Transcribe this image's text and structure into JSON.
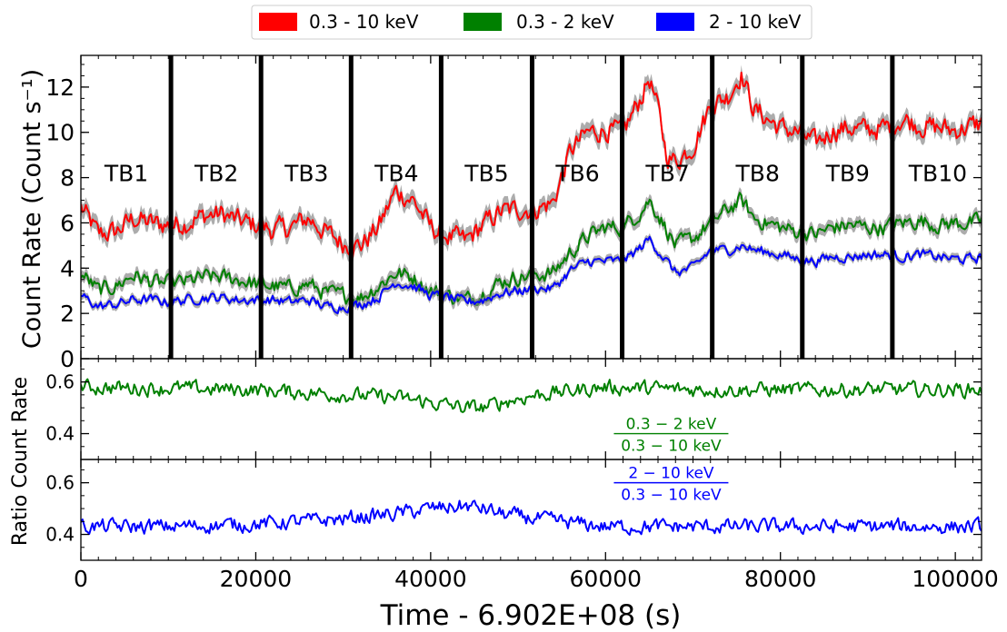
{
  "chart_data": {
    "type": "line",
    "legend": {
      "placement": "top-center",
      "entries": [
        {
          "label": "0.3 - 10 keV",
          "color": "#ff0000"
        },
        {
          "label": "0.3 - 2 keV",
          "color": "#008000"
        },
        {
          "label": "2 - 10 keV",
          "color": "#0000ff"
        }
      ]
    },
    "x_axis": {
      "label": "Time - 6.902E+08 (s)",
      "range": [
        0,
        103000
      ],
      "ticks": [
        0,
        20000,
        40000,
        60000,
        80000,
        100000
      ],
      "tick_labels": [
        "0",
        "20000",
        "40000",
        "60000",
        "80000",
        "100000"
      ]
    },
    "panels": [
      {
        "name": "light-curves",
        "ylabel": "Count Rate (Count s⁻¹)",
        "ylim": [
          0,
          13.4
        ],
        "yticks": [
          0,
          2,
          4,
          6,
          8,
          10,
          12
        ],
        "ytick_labels": [
          "0",
          "2",
          "4",
          "6",
          "8",
          "10",
          "12"
        ],
        "series": [
          {
            "name": "0.3 - 10 keV",
            "color": "#ff0000",
            "x": [
              0,
              2000,
              4000,
              6000,
              8000,
              10000,
              12000,
              14000,
              16000,
              18000,
              20000,
              22000,
              24000,
              26000,
              28000,
              30000,
              32000,
              34000,
              36000,
              38000,
              40000,
              42000,
              44000,
              46000,
              48000,
              50000,
              52000,
              54000,
              56000,
              58000,
              60000,
              62000,
              64000,
              65000,
              66000,
              67000,
              68000,
              70000,
              72000,
              74000,
              75500,
              77000,
              80000,
              82000,
              84000,
              86000,
              88000,
              90000,
              92000,
              94000,
              96000,
              98000,
              100000,
              102000,
              103000
            ],
            "y": [
              6.7,
              5.5,
              5.6,
              6.2,
              6.0,
              5.9,
              6.0,
              6.3,
              6.4,
              6.1,
              5.9,
              5.7,
              5.8,
              6.2,
              5.6,
              5.1,
              5.0,
              5.8,
              7.4,
              7.0,
              5.8,
              5.4,
              5.2,
              5.9,
              6.5,
              6.6,
              6.6,
              6.9,
              9.2,
              10.0,
              10.1,
              10.0,
              11.5,
              12.4,
              11.0,
              9.0,
              8.7,
              9.4,
              11.2,
              11.6,
              12.6,
              11.0,
              10.2,
              10.0,
              9.5,
              10.1,
              10.2,
              10.1,
              10.2,
              10.6,
              10.3,
              10.2,
              10.1,
              10.3,
              10.4
            ],
            "noise_amplitude": 0.75
          },
          {
            "name": "0.3 - 2 keV",
            "color": "#008000",
            "x": [
              0,
              2000,
              4000,
              6000,
              8000,
              10000,
              12000,
              14000,
              16000,
              18000,
              20000,
              22000,
              24000,
              26000,
              28000,
              30000,
              32000,
              34000,
              36000,
              38000,
              40000,
              42000,
              44000,
              46000,
              48000,
              50000,
              52000,
              54000,
              56000,
              58000,
              60000,
              62000,
              64000,
              65000,
              66000,
              68000,
              70000,
              72000,
              74000,
              75500,
              77000,
              80000,
              82000,
              84000,
              86000,
              88000,
              90000,
              92000,
              94000,
              96000,
              98000,
              100000,
              102000,
              103000
            ],
            "y": [
              3.8,
              3.0,
              3.2,
              3.7,
              3.4,
              3.3,
              3.4,
              3.6,
              3.6,
              3.5,
              3.3,
              3.2,
              3.1,
              3.3,
              2.9,
              2.8,
              2.7,
              3.2,
              3.8,
              3.6,
              3.0,
              2.8,
              2.6,
              2.9,
              3.4,
              3.6,
              3.7,
              3.8,
              4.7,
              5.4,
              5.8,
              5.8,
              6.5,
              7.0,
              6.4,
              5.0,
              5.3,
              6.0,
              6.6,
              7.0,
              6.2,
              5.8,
              5.6,
              5.5,
              5.8,
              5.9,
              5.8,
              5.8,
              6.0,
              6.1,
              5.9,
              6.0,
              6.0,
              6.1
            ],
            "noise_amplitude": 0.55
          },
          {
            "name": "2 - 10 keV",
            "color": "#0000ff",
            "x": [
              0,
              2000,
              4000,
              6000,
              8000,
              10000,
              12000,
              14000,
              16000,
              18000,
              20000,
              22000,
              24000,
              26000,
              28000,
              30000,
              32000,
              34000,
              36000,
              38000,
              40000,
              42000,
              44000,
              46000,
              48000,
              50000,
              52000,
              54000,
              56000,
              58000,
              60000,
              62000,
              64000,
              65000,
              66000,
              68000,
              70000,
              72000,
              74000,
              75500,
              77000,
              80000,
              82000,
              84000,
              86000,
              88000,
              90000,
              92000,
              94000,
              96000,
              98000,
              100000,
              102000,
              103000
            ],
            "y": [
              2.8,
              2.3,
              2.4,
              2.6,
              2.6,
              2.5,
              2.6,
              2.7,
              2.7,
              2.6,
              2.6,
              2.6,
              2.5,
              2.6,
              2.3,
              2.3,
              2.4,
              2.7,
              3.4,
              3.2,
              2.8,
              2.7,
              2.5,
              2.6,
              2.9,
              3.0,
              3.1,
              3.1,
              3.9,
              4.3,
              4.3,
              4.3,
              4.9,
              5.3,
              4.8,
              3.8,
              4.0,
              4.8,
              4.8,
              5.0,
              4.8,
              4.6,
              4.4,
              4.3,
              4.5,
              4.5,
              4.6,
              4.6,
              4.5,
              4.6,
              4.5,
              4.4,
              4.4,
              4.5
            ],
            "noise_amplitude": 0.35
          }
        ],
        "time_bin_boundaries": [
          10300,
          20600,
          30900,
          41200,
          51600,
          61900,
          72200,
          82500,
          92800
        ],
        "time_bin_labels": [
          "TB1",
          "TB2",
          "TB3",
          "TB4",
          "TB5",
          "TB6",
          "TB7",
          "TB8",
          "TB9",
          "TB10"
        ],
        "time_bin_label_x": [
          5200,
          15500,
          25800,
          36100,
          46400,
          56800,
          67100,
          77400,
          87700,
          98000
        ],
        "time_bin_label_y": 8.2
      },
      {
        "name": "soft-ratio",
        "ylim": [
          0.3,
          0.69
        ],
        "yticks": [
          0.4,
          0.6
        ],
        "ytick_labels": [
          "0.4",
          "0.6"
        ],
        "ratio_label": {
          "numerator": "0.3 − 2 keV",
          "denominator": "0.3 − 10 keV",
          "x": 67500,
          "y": 0.4
        },
        "series": [
          {
            "name": "0.3-2 / 0.3-10 keV",
            "color": "#008000",
            "x": [
              0,
              10000,
              20000,
              30000,
              36000,
              40000,
              44000,
              46000,
              48000,
              52000,
              60000,
              70000,
              80000,
              90000,
              103000
            ],
            "y": [
              0.58,
              0.575,
              0.57,
              0.55,
              0.54,
              0.52,
              0.5,
              0.5,
              0.52,
              0.55,
              0.58,
              0.57,
              0.57,
              0.57,
              0.57
            ],
            "noise_amplitude": 0.045
          }
        ]
      },
      {
        "name": "hard-ratio",
        "ylim": [
          0.3,
          0.69
        ],
        "yticks": [
          0.4,
          0.6
        ],
        "ytick_labels": [
          "0.4",
          "0.6"
        ],
        "ratio_label": {
          "numerator": "2 − 10 keV",
          "denominator": "0.3 − 10 keV",
          "x": 67500,
          "y": 0.6
        },
        "series": [
          {
            "name": "2-10 / 0.3-10 keV",
            "color": "#0000ff",
            "x": [
              0,
              10000,
              20000,
              30000,
              36000,
              40000,
              44000,
              46000,
              48000,
              52000,
              60000,
              70000,
              80000,
              90000,
              103000
            ],
            "y": [
              0.43,
              0.43,
              0.44,
              0.46,
              0.48,
              0.5,
              0.51,
              0.5,
              0.48,
              0.46,
              0.43,
              0.43,
              0.43,
              0.43,
              0.43
            ],
            "noise_amplitude": 0.045
          }
        ]
      }
    ],
    "shared_ylabel": "Ratio Count Rate"
  }
}
